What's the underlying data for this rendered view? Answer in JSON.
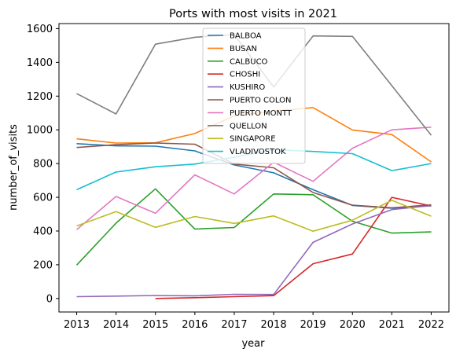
{
  "chart_data": {
    "type": "line",
    "title": "Ports with most visits in 2021",
    "xlabel": "year",
    "ylabel": "number_of_visits",
    "x": [
      2013,
      2014,
      2015,
      2016,
      2017,
      2018,
      2019,
      2020,
      2021,
      2022
    ],
    "xlim": [
      2012.55,
      2022.45
    ],
    "ylim": [
      -80,
      1630
    ],
    "yticks": [
      0,
      200,
      400,
      600,
      800,
      1000,
      1200,
      1400,
      1600
    ],
    "grid": false,
    "legend_position": "upper center",
    "series": [
      {
        "name": "BALBOA",
        "color": "#1f77b4",
        "values": [
          918,
          905,
          903,
          875,
          792,
          745,
          645,
          552,
          535,
          550
        ]
      },
      {
        "name": "BUSAN",
        "color": "#ff7f0e",
        "values": [
          947,
          922,
          923,
          978,
          1083,
          1112,
          1132,
          999,
          972,
          810
        ]
      },
      {
        "name": "CALBUCO",
        "color": "#2ca02c",
        "values": [
          198,
          447,
          650,
          412,
          421,
          620,
          615,
          458,
          388,
          395
        ]
      },
      {
        "name": "CHOSHI",
        "color": "#d62728",
        "values": [
          null,
          null,
          0,
          5,
          11,
          17,
          206,
          264,
          600,
          548
        ]
      },
      {
        "name": "KUSHIRO",
        "color": "#9467bd",
        "values": [
          11,
          14,
          18,
          16,
          25,
          24,
          333,
          442,
          527,
          552
        ]
      },
      {
        "name": "PUERTO COLON",
        "color": "#8c564b",
        "values": [
          895,
          912,
          922,
          915,
          797,
          775,
          628,
          553,
          538,
          555
        ]
      },
      {
        "name": "PUERTO MONTT",
        "color": "#e377c2",
        "values": [
          408,
          605,
          505,
          733,
          620,
          808,
          695,
          891,
          1000,
          1016
        ]
      },
      {
        "name": "QUELLON",
        "color": "#7f7f7f",
        "values": [
          1215,
          1094,
          1508,
          1549,
          1565,
          1254,
          1557,
          1554,
          1262,
          968
        ]
      },
      {
        "name": "SINGAPORE",
        "color": "#bcbd22",
        "values": [
          430,
          515,
          422,
          486,
          445,
          490,
          399,
          464,
          582,
          488
        ]
      },
      {
        "name": "VLADIVOSTOK",
        "color": "#17becf",
        "values": [
          645,
          750,
          781,
          797,
          838,
          882,
          872,
          859,
          758,
          800
        ]
      }
    ]
  }
}
